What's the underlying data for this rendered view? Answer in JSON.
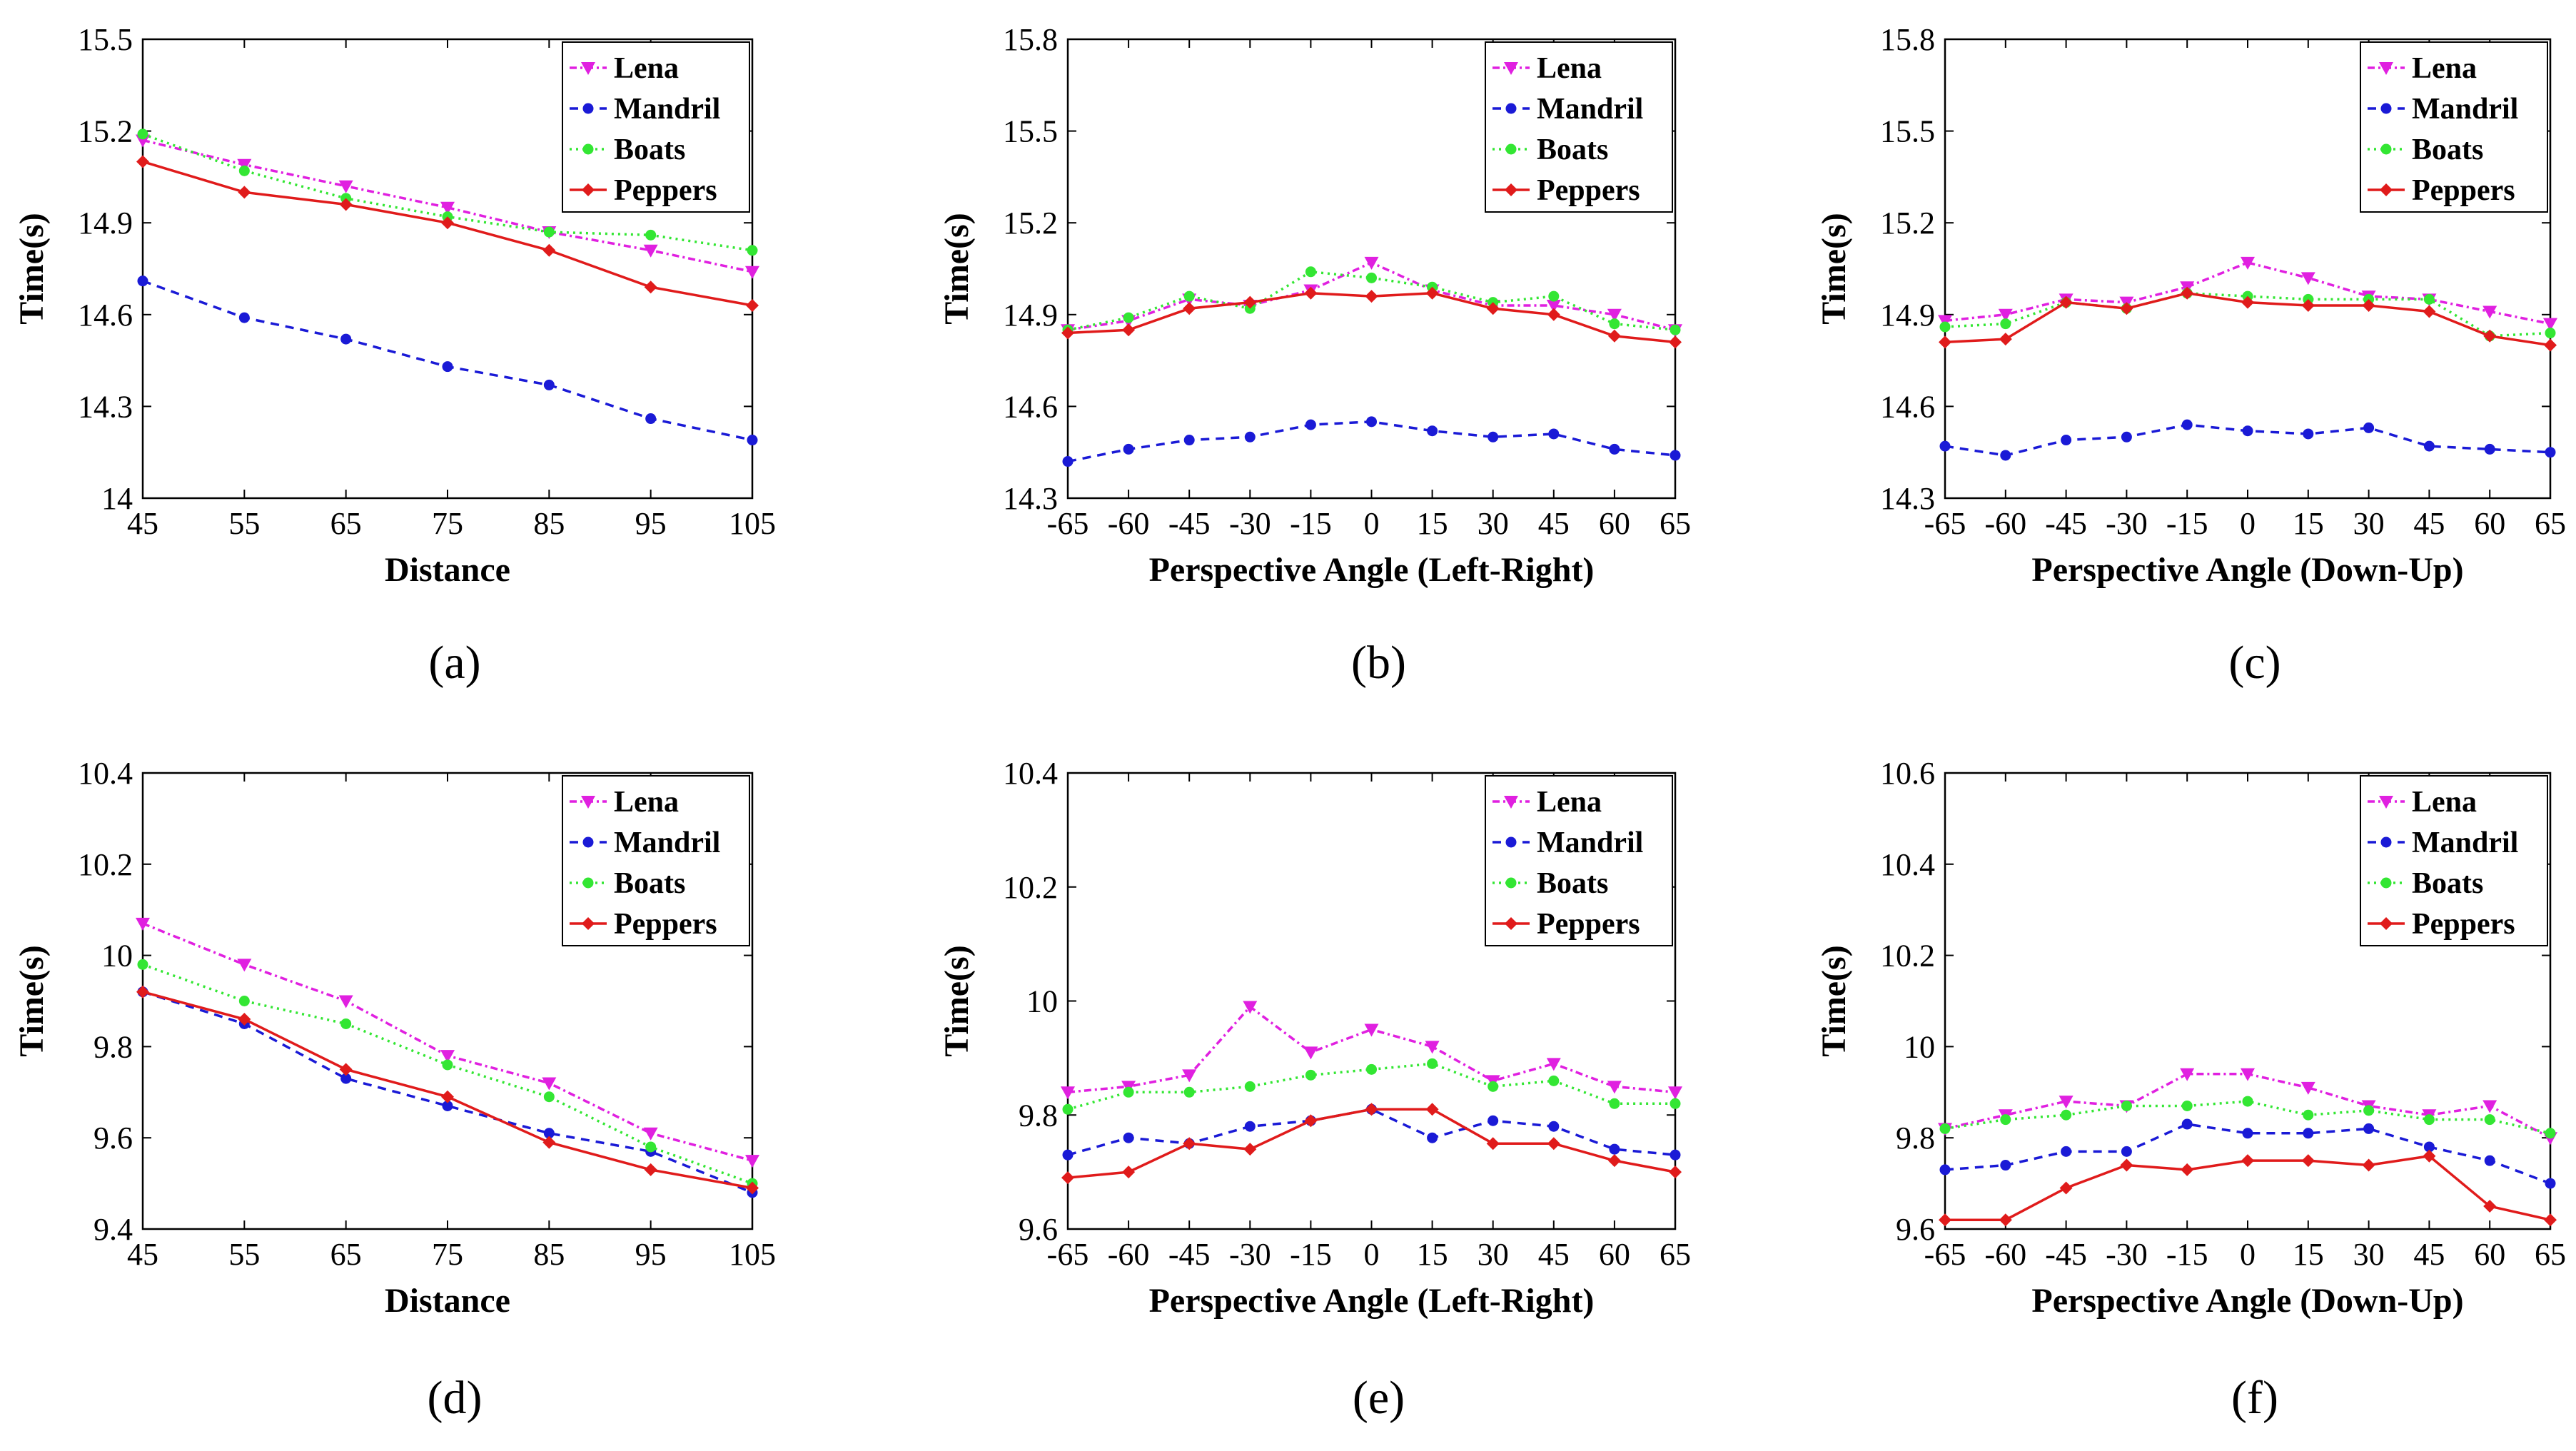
{
  "series_styles": [
    {
      "name": "Lena",
      "color": "#e020e0",
      "dash": "10,5,3,5",
      "marker": "triangle-down"
    },
    {
      "name": "Mandril",
      "color": "#1a1ad6",
      "dash": "12,9",
      "marker": "circle"
    },
    {
      "name": "Boats",
      "color": "#33e633",
      "dash": "3,6",
      "marker": "circle"
    },
    {
      "name": "Peppers",
      "color": "#e01b1b",
      "dash": "",
      "marker": "diamond"
    }
  ],
  "chart_data": [
    {
      "id": "a",
      "type": "line",
      "caption": "(a)",
      "xlabel": "Distance",
      "ylabel": "Time(s)",
      "x": [
        45,
        55,
        65,
        75,
        85,
        95,
        105
      ],
      "x_tick_labels": [
        "45",
        "55",
        "65",
        "75",
        "85",
        "95",
        "105"
      ],
      "ylim": [
        14,
        15.5
      ],
      "y_ticks": [
        14,
        14.3,
        14.6,
        14.9,
        15.2,
        15.5
      ],
      "y_tick_labels": [
        "14",
        "14.3",
        "14.6",
        "14.9",
        "15.2",
        "15.5"
      ],
      "legend": [
        "Lena",
        "Mandril",
        "Boats",
        "Peppers"
      ],
      "legend_position": "top-right",
      "series": [
        {
          "name": "Lena",
          "values": [
            15.17,
            15.09,
            15.02,
            14.95,
            14.87,
            14.81,
            14.74
          ]
        },
        {
          "name": "Mandril",
          "values": [
            14.71,
            14.59,
            14.52,
            14.43,
            14.37,
            14.26,
            14.19
          ]
        },
        {
          "name": "Boats",
          "values": [
            15.19,
            15.07,
            14.98,
            14.92,
            14.87,
            14.86,
            14.81
          ]
        },
        {
          "name": "Peppers",
          "values": [
            15.1,
            15.0,
            14.96,
            14.9,
            14.81,
            14.69,
            14.63
          ]
        }
      ]
    },
    {
      "id": "b",
      "type": "line",
      "caption": "(b)",
      "xlabel": "Perspective Angle (Left-Right)",
      "ylabel": "Time(s)",
      "x": [
        -65,
        -60,
        -45,
        -30,
        -15,
        0,
        15,
        30,
        45,
        60,
        65
      ],
      "x_tick_labels": [
        "-65",
        "-60",
        "-45",
        "-30",
        "-15",
        "0",
        "15",
        "30",
        "45",
        "60",
        "65"
      ],
      "ylim": [
        14.3,
        15.8
      ],
      "y_ticks": [
        14.3,
        14.6,
        14.9,
        15.2,
        15.5,
        15.8
      ],
      "y_tick_labels": [
        "14.3",
        "14.6",
        "14.9",
        "15.2",
        "15.5",
        "15.8"
      ],
      "legend": [
        "Lena",
        "Mandril",
        "Boats",
        "Peppers"
      ],
      "legend_position": "top-right",
      "series": [
        {
          "name": "Lena",
          "values": [
            14.85,
            14.88,
            14.95,
            14.93,
            14.98,
            15.07,
            14.98,
            14.93,
            14.93,
            14.9,
            14.85
          ]
        },
        {
          "name": "Mandril",
          "values": [
            14.42,
            14.46,
            14.49,
            14.5,
            14.54,
            14.55,
            14.52,
            14.5,
            14.51,
            14.46,
            14.44
          ]
        },
        {
          "name": "Boats",
          "values": [
            14.85,
            14.89,
            14.96,
            14.92,
            15.04,
            15.02,
            14.99,
            14.94,
            14.96,
            14.87,
            14.85
          ]
        },
        {
          "name": "Peppers",
          "values": [
            14.84,
            14.85,
            14.92,
            14.94,
            14.97,
            14.96,
            14.97,
            14.92,
            14.9,
            14.83,
            14.81
          ]
        }
      ]
    },
    {
      "id": "c",
      "type": "line",
      "caption": "(c)",
      "xlabel": "Perspective Angle (Down-Up)",
      "ylabel": "Time(s)",
      "x": [
        -65,
        -60,
        -45,
        -30,
        -15,
        0,
        15,
        30,
        45,
        60,
        65
      ],
      "x_tick_labels": [
        "-65",
        "-60",
        "-45",
        "-30",
        "-15",
        "0",
        "15",
        "30",
        "45",
        "60",
        "65"
      ],
      "ylim": [
        14.3,
        15.8
      ],
      "y_ticks": [
        14.3,
        14.6,
        14.9,
        15.2,
        15.5,
        15.8
      ],
      "y_tick_labels": [
        "14.3",
        "14.6",
        "14.9",
        "15.2",
        "15.5",
        "15.8"
      ],
      "legend": [
        "Lena",
        "Mandril",
        "Boats",
        "Peppers"
      ],
      "legend_position": "top-right",
      "series": [
        {
          "name": "Lena",
          "values": [
            14.88,
            14.9,
            14.95,
            14.94,
            14.99,
            15.07,
            15.02,
            14.96,
            14.95,
            14.91,
            14.87
          ]
        },
        {
          "name": "Mandril",
          "values": [
            14.47,
            14.44,
            14.49,
            14.5,
            14.54,
            14.52,
            14.51,
            14.53,
            14.47,
            14.46,
            14.45
          ]
        },
        {
          "name": "Boats",
          "values": [
            14.86,
            14.87,
            14.94,
            14.92,
            14.97,
            14.96,
            14.95,
            14.95,
            14.95,
            14.83,
            14.84
          ]
        },
        {
          "name": "Peppers",
          "values": [
            14.81,
            14.82,
            14.94,
            14.92,
            14.97,
            14.94,
            14.93,
            14.93,
            14.91,
            14.83,
            14.8
          ]
        }
      ]
    },
    {
      "id": "d",
      "type": "line",
      "caption": "(d)",
      "xlabel": "Distance",
      "ylabel": "Time(s)",
      "x": [
        45,
        55,
        65,
        75,
        85,
        95,
        105
      ],
      "x_tick_labels": [
        "45",
        "55",
        "65",
        "75",
        "85",
        "95",
        "105"
      ],
      "ylim": [
        9.4,
        10.4
      ],
      "y_ticks": [
        9.4,
        9.6,
        9.8,
        10,
        10.2,
        10.4
      ],
      "y_tick_labels": [
        "9.4",
        "9.6",
        "9.8",
        "10",
        "10.2",
        "10.4"
      ],
      "legend": [
        "Lena",
        "Mandril",
        "Boats",
        "Peppers"
      ],
      "legend_position": "top-right",
      "series": [
        {
          "name": "Lena",
          "values": [
            10.07,
            9.98,
            9.9,
            9.78,
            9.72,
            9.61,
            9.55
          ]
        },
        {
          "name": "Mandril",
          "values": [
            9.92,
            9.85,
            9.73,
            9.67,
            9.61,
            9.57,
            9.48
          ]
        },
        {
          "name": "Boats",
          "values": [
            9.98,
            9.9,
            9.85,
            9.76,
            9.69,
            9.58,
            9.5
          ]
        },
        {
          "name": "Peppers",
          "values": [
            9.92,
            9.86,
            9.75,
            9.69,
            9.59,
            9.53,
            9.49
          ]
        }
      ]
    },
    {
      "id": "e",
      "type": "line",
      "caption": "(e)",
      "xlabel": "Perspective Angle (Left-Right)",
      "ylabel": "Time(s)",
      "x": [
        -65,
        -60,
        -45,
        -30,
        -15,
        0,
        15,
        30,
        45,
        60,
        65
      ],
      "x_tick_labels": [
        "-65",
        "-60",
        "-45",
        "-30",
        "-15",
        "0",
        "15",
        "30",
        "45",
        "60",
        "65"
      ],
      "ylim": [
        9.6,
        10.4
      ],
      "y_ticks": [
        9.6,
        9.8,
        10,
        10.2,
        10.4
      ],
      "y_tick_labels": [
        "9.6",
        "9.8",
        "10",
        "10.2",
        "10.4"
      ],
      "legend": [
        "Lena",
        "Mandril",
        "Boats",
        "Peppers"
      ],
      "legend_position": "top-right",
      "series": [
        {
          "name": "Lena",
          "values": [
            9.84,
            9.85,
            9.87,
            9.99,
            9.91,
            9.95,
            9.92,
            9.86,
            9.89,
            9.85,
            9.84
          ]
        },
        {
          "name": "Mandril",
          "values": [
            9.73,
            9.76,
            9.75,
            9.78,
            9.79,
            9.81,
            9.76,
            9.79,
            9.78,
            9.74,
            9.73
          ]
        },
        {
          "name": "Boats",
          "values": [
            9.81,
            9.84,
            9.84,
            9.85,
            9.87,
            9.88,
            9.89,
            9.85,
            9.86,
            9.82,
            9.82
          ]
        },
        {
          "name": "Peppers",
          "values": [
            9.69,
            9.7,
            9.75,
            9.74,
            9.79,
            9.81,
            9.81,
            9.75,
            9.75,
            9.72,
            9.7
          ]
        }
      ]
    },
    {
      "id": "f",
      "type": "line",
      "caption": "(f)",
      "xlabel": "Perspective Angle (Down-Up)",
      "ylabel": "Time(s)",
      "x": [
        -65,
        -60,
        -45,
        -30,
        -15,
        0,
        15,
        30,
        45,
        60,
        65
      ],
      "x_tick_labels": [
        "-65",
        "-60",
        "-45",
        "-30",
        "-15",
        "0",
        "15",
        "30",
        "45",
        "60",
        "65"
      ],
      "ylim": [
        9.6,
        10.6
      ],
      "y_ticks": [
        9.6,
        9.8,
        10,
        10.2,
        10.4,
        10.6
      ],
      "y_tick_labels": [
        "9.6",
        "9.8",
        "10",
        "10.2",
        "10.4",
        "10.6"
      ],
      "legend": [
        "Lena",
        "Mandril",
        "Boats",
        "Peppers"
      ],
      "legend_position": "top-right",
      "series": [
        {
          "name": "Lena",
          "values": [
            9.82,
            9.85,
            9.88,
            9.87,
            9.94,
            9.94,
            9.91,
            9.87,
            9.85,
            9.87,
            9.8
          ]
        },
        {
          "name": "Mandril",
          "values": [
            9.73,
            9.74,
            9.77,
            9.77,
            9.83,
            9.81,
            9.81,
            9.82,
            9.78,
            9.75,
            9.7
          ]
        },
        {
          "name": "Boats",
          "values": [
            9.82,
            9.84,
            9.85,
            9.87,
            9.87,
            9.88,
            9.85,
            9.86,
            9.84,
            9.84,
            9.81
          ]
        },
        {
          "name": "Peppers",
          "values": [
            9.62,
            9.62,
            9.69,
            9.74,
            9.73,
            9.75,
            9.75,
            9.74,
            9.76,
            9.65,
            9.62
          ]
        }
      ]
    }
  ]
}
